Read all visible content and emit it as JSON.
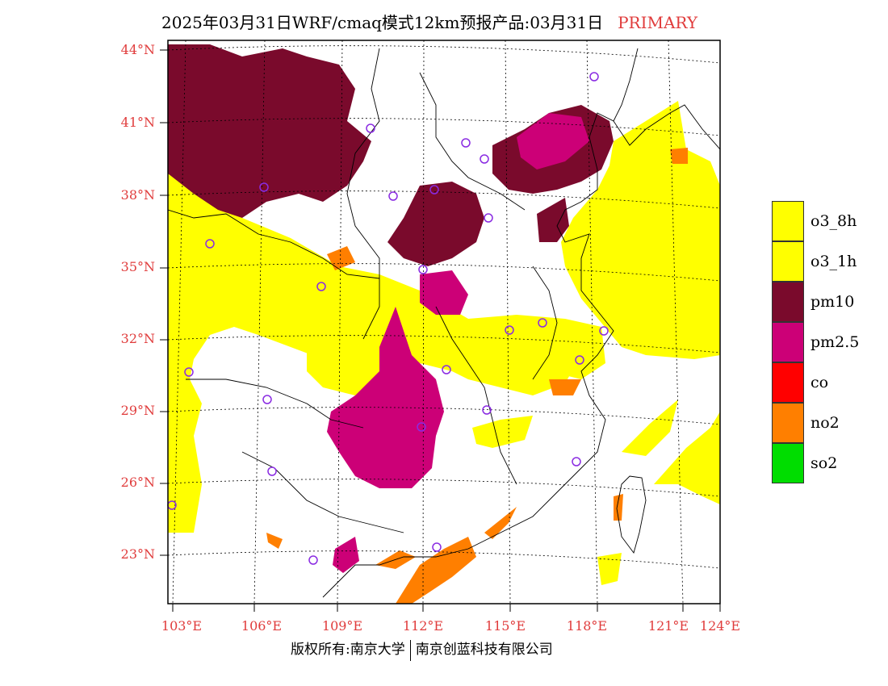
{
  "header": {
    "title": "2025年03月31日WRF/cmaq模式12km预报产品:03月31日",
    "tag": "PRIMARY"
  },
  "axes": {
    "lat_labels": [
      "44°N",
      "41°N",
      "38°N",
      "35°N",
      "32°N",
      "29°N",
      "26°N",
      "23°N"
    ],
    "lon_labels": [
      "103°E",
      "106°E",
      "109°E",
      "112°E",
      "115°E",
      "118°E",
      "121°E",
      "124°E"
    ]
  },
  "legend": [
    {
      "label": "o3_8h",
      "color": "#ffff00"
    },
    {
      "label": "o3_1h",
      "color": "#ffff00"
    },
    {
      "label": "pm10",
      "color": "#7a0a2c"
    },
    {
      "label": "pm2.5",
      "color": "#cc0077"
    },
    {
      "label": "co",
      "color": "#ff0000"
    },
    {
      "label": "no2",
      "color": "#ff7f00"
    },
    {
      "label": "so2",
      "color": "#00dd00"
    }
  ],
  "footer": {
    "left": "版权所有:南京大学",
    "right": "南京创蓝科技有限公司"
  }
}
